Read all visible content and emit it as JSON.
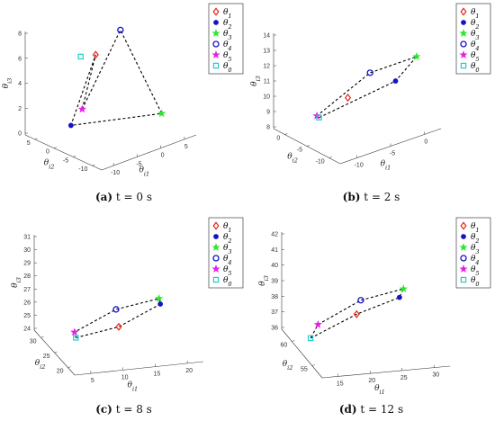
{
  "chart_data": [
    {
      "type": "scatter3d",
      "panel_label": "(a)",
      "caption": "t = 0 s",
      "xlabel": "θi1",
      "ylabel": "θi2",
      "zlabel": "θi3",
      "xticks": [
        "-10",
        "-5",
        "0",
        "5"
      ],
      "yticks": [
        "-10",
        "-5",
        "0",
        "5"
      ],
      "zticks": [
        "0",
        "2",
        "4",
        "6",
        "8"
      ],
      "polygon_order": [
        "θ5",
        "θ4",
        "θ3",
        "θ2",
        "θ1",
        "θ5"
      ],
      "points": [
        {
          "series": "θ1",
          "x": -2,
          "y": -7,
          "z": 6
        },
        {
          "series": "θ2",
          "x": -5,
          "y": -9,
          "z": 0
        },
        {
          "series": "θ3",
          "x": 2,
          "y": 3,
          "z": 2
        },
        {
          "series": "θ4",
          "x": 1,
          "y": -5,
          "z": 8
        },
        {
          "series": "θ5",
          "x": -8,
          "y": -3,
          "z": 3
        },
        {
          "series": "θ0",
          "x": -4,
          "y": -8,
          "z": 6
        }
      ]
    },
    {
      "type": "scatter3d",
      "panel_label": "(b)",
      "caption": "t = 2 s",
      "xlabel": "θi1",
      "ylabel": "θi2",
      "zlabel": "θi3",
      "xticks": [
        "-10",
        "-5",
        "0"
      ],
      "yticks": [
        "-10",
        "-5",
        "0"
      ],
      "zticks": [
        "8",
        "9",
        "10",
        "11",
        "12",
        "13",
        "14"
      ],
      "polygon_order": [
        "θ0",
        "θ2",
        "θ3",
        "θ4",
        "θ5"
      ],
      "points": [
        {
          "series": "θ1",
          "x": -5,
          "y": -6,
          "z": 10
        },
        {
          "series": "θ2",
          "x": -1,
          "y": -3,
          "z": 11
        },
        {
          "series": "θ3",
          "x": 1,
          "y": -2,
          "z": 12.5
        },
        {
          "series": "θ4",
          "x": -5,
          "y": -2,
          "z": 12.5
        },
        {
          "series": "θ5",
          "x": -9,
          "y": -6,
          "z": 9.5
        },
        {
          "series": "θ0",
          "x": -8,
          "y": -7,
          "z": 9
        }
      ]
    },
    {
      "type": "scatter3d",
      "panel_label": "(c)",
      "caption": "t = 8 s",
      "xlabel": "θi1",
      "ylabel": "θi2",
      "zlabel": "θi3",
      "xticks": [
        "5",
        "10",
        "15",
        "20"
      ],
      "yticks": [
        "20",
        "25",
        "30"
      ],
      "zticks": [
        "24",
        "25",
        "26",
        "27",
        "28",
        "29",
        "30",
        "31"
      ],
      "polygon_order": [
        "θ0",
        "θ1",
        "θ2",
        "θ3",
        "θ4",
        "θ5",
        "θ0"
      ],
      "points": [
        {
          "series": "θ1",
          "x": 12,
          "y": 25,
          "z": 25
        },
        {
          "series": "θ2",
          "x": 17,
          "y": 27,
          "z": 27
        },
        {
          "series": "θ3",
          "x": 16,
          "y": 29,
          "z": 28
        },
        {
          "series": "θ4",
          "x": 10,
          "y": 29,
          "z": 27.5
        },
        {
          "series": "θ5",
          "x": 5,
          "y": 27,
          "z": 25.5
        },
        {
          "series": "θ0",
          "x": 6,
          "y": 25,
          "z": 24.5
        }
      ]
    },
    {
      "type": "scatter3d",
      "panel_label": "(d)",
      "caption": "t = 12 s",
      "xlabel": "θi1",
      "ylabel": "θi2",
      "zlabel": "θi3",
      "xticks": [
        "15",
        "20",
        "25",
        "30"
      ],
      "yticks": [
        "55",
        "60"
      ],
      "zticks": [
        "36",
        "37",
        "38",
        "39",
        "40",
        "41",
        "42"
      ],
      "polygon_order": [
        "θ0",
        "θ1",
        "θ2",
        "θ3",
        "θ4",
        "θ5",
        "θ0"
      ],
      "points": [
        {
          "series": "θ1",
          "x": 22,
          "y": 56,
          "z": 37
        },
        {
          "series": "θ2",
          "x": 27,
          "y": 58,
          "z": 38.5
        },
        {
          "series": "θ3",
          "x": 26,
          "y": 61,
          "z": 40
        },
        {
          "series": "θ4",
          "x": 20,
          "y": 61,
          "z": 39.5
        },
        {
          "series": "θ5",
          "x": 15,
          "y": 59,
          "z": 37.5
        },
        {
          "series": "θ0",
          "x": 15,
          "y": 57,
          "z": 36
        }
      ]
    }
  ],
  "legend": [
    {
      "label": "θ1",
      "marker": "diamond",
      "color": "#e8231a"
    },
    {
      "label": "θ2",
      "marker": "dot",
      "color": "#1313c8"
    },
    {
      "label": "θ3",
      "marker": "star",
      "color": "#2ee62e"
    },
    {
      "label": "θ4",
      "marker": "circle",
      "color": "#1313c8"
    },
    {
      "label": "θ5",
      "marker": "star",
      "color": "#e61ee6"
    },
    {
      "label": "θ0",
      "marker": "square",
      "color": "#22cccc"
    }
  ],
  "style": {
    "line_color": "#000000",
    "line_dash": "dashed"
  }
}
